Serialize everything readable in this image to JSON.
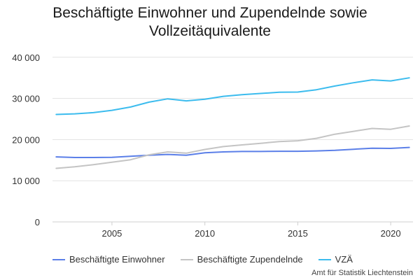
{
  "chart_data": {
    "type": "line",
    "title_lines": [
      "Beschäftigte Einwohner und Zupendelnde sowie",
      "Vollzeitäquivalente"
    ],
    "xlabel": "",
    "ylabel": "",
    "x": [
      2002,
      2003,
      2004,
      2005,
      2006,
      2007,
      2008,
      2009,
      2010,
      2011,
      2012,
      2013,
      2014,
      2015,
      2016,
      2017,
      2018,
      2019,
      2020,
      2021
    ],
    "xlim": [
      2001.8,
      2021.2
    ],
    "ylim": [
      0,
      42000
    ],
    "x_ticks": [
      "2005",
      "2010",
      "2015",
      "2020"
    ],
    "y_ticks": [
      "0",
      "10 000",
      "20 000",
      "30 000",
      "40 000"
    ],
    "grid": true,
    "legend_position": "bottom",
    "series": [
      {
        "name": "Beschäftigte Einwohner",
        "color": "#5b7fe8",
        "values": [
          15800,
          15650,
          15650,
          15700,
          15950,
          16200,
          16400,
          16200,
          16800,
          17000,
          17100,
          17100,
          17150,
          17150,
          17250,
          17400,
          17650,
          17900,
          17850,
          18100
        ]
      },
      {
        "name": "Beschäftigte Zupendelnde",
        "color": "#c4c4c4",
        "values": [
          13000,
          13400,
          13900,
          14500,
          15100,
          16300,
          17000,
          16700,
          17600,
          18300,
          18700,
          19100,
          19500,
          19700,
          20300,
          21300,
          22000,
          22700,
          22500,
          23300
        ]
      },
      {
        "name": "VZÄ",
        "color": "#3cbcee",
        "values": [
          26100,
          26250,
          26550,
          27100,
          27900,
          29100,
          29900,
          29400,
          29800,
          30500,
          30900,
          31200,
          31500,
          31550,
          32100,
          33000,
          33800,
          34500,
          34250,
          35000
        ]
      }
    ]
  },
  "source": "Amt für Statistik Liechtenstein"
}
